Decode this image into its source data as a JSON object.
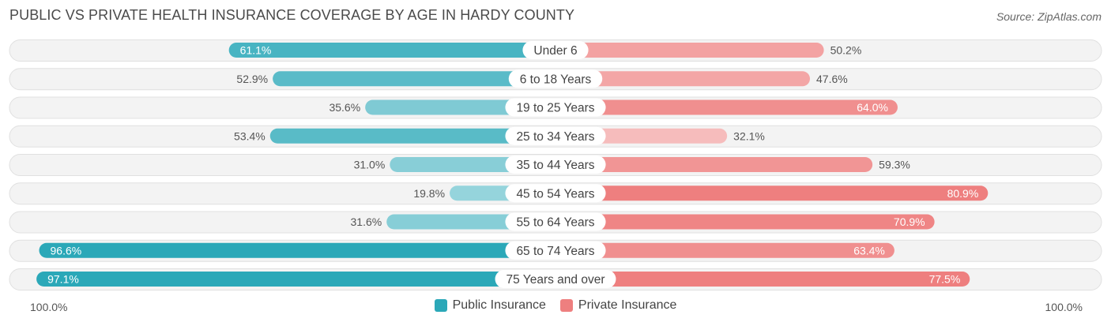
{
  "title": "PUBLIC VS PRIVATE HEALTH INSURANCE COVERAGE BY AGE IN HARDY COUNTY",
  "source": "Source: ZipAtlas.com",
  "axis": {
    "left_label": "100.0%",
    "right_label": "100.0%"
  },
  "legend": [
    {
      "name": "Public Insurance",
      "color": "#2ba8b8"
    },
    {
      "name": "Private Insurance",
      "color": "#ee7f7f"
    }
  ],
  "chart_data": {
    "type": "bar",
    "orientation": "horizontal-diverging",
    "categories": [
      "Under 6",
      "6 to 18 Years",
      "19 to 25 Years",
      "25 to 34 Years",
      "35 to 44 Years",
      "45 to 54 Years",
      "55 to 64 Years",
      "65 to 74 Years",
      "75 Years and over"
    ],
    "series": [
      {
        "name": "Public Insurance",
        "values": [
          61.1,
          52.9,
          35.6,
          53.4,
          31.0,
          19.8,
          31.6,
          96.6,
          97.1
        ],
        "labels": [
          "61.1%",
          "52.9%",
          "35.6%",
          "53.4%",
          "31.0%",
          "19.8%",
          "31.6%",
          "96.6%",
          "97.1%"
        ]
      },
      {
        "name": "Private Insurance",
        "values": [
          50.2,
          47.6,
          64.0,
          32.1,
          59.3,
          80.9,
          70.9,
          63.4,
          77.5
        ],
        "labels": [
          "50.2%",
          "47.6%",
          "64.0%",
          "32.1%",
          "59.3%",
          "80.9%",
          "70.9%",
          "63.4%",
          "77.5%"
        ]
      }
    ],
    "xlim": [
      0,
      100
    ]
  }
}
